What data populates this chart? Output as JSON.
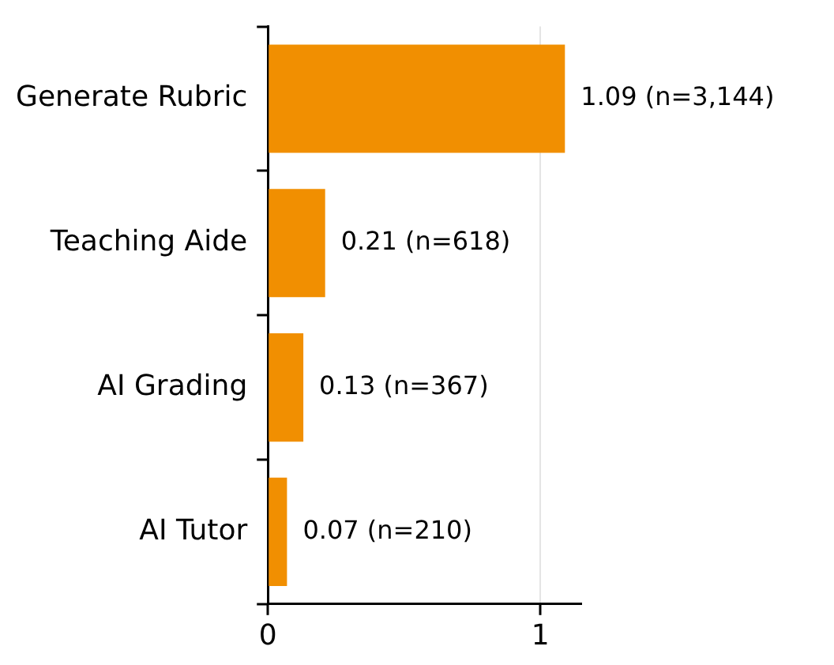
{
  "chart_data": {
    "type": "bar",
    "orientation": "horizontal",
    "categories": [
      "Generate Rubric",
      "Teaching Aide",
      "AI Grading",
      "AI Tutor"
    ],
    "values": [
      1.09,
      0.21,
      0.13,
      0.07
    ],
    "color": "#f18f01",
    "value_labels": [
      "1.09 (n=3,144)",
      "0.21 (n=618)",
      "0.13 (n=367)",
      "0.07 (n=210)"
    ],
    "xlim": [
      0,
      1.15
    ],
    "xticks": [
      0,
      1
    ],
    "grid": "x",
    "legend": false
  }
}
